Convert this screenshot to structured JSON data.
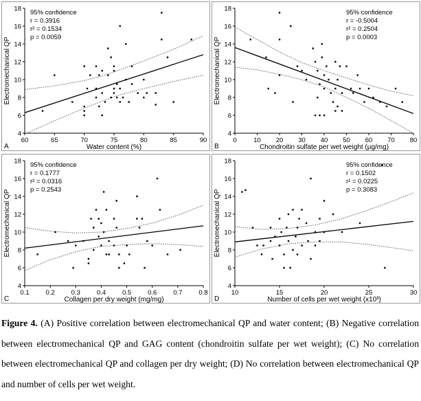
{
  "chart_data": [
    {
      "type": "scatter",
      "panel_label": "A",
      "title": "",
      "xlabel": "Water content (%)",
      "ylabel": "Electromechanical QP",
      "xlim": [
        60,
        90
      ],
      "ylim": [
        4,
        18
      ],
      "xticks": [
        60,
        65,
        70,
        75,
        80,
        85,
        90
      ],
      "yticks": [
        4,
        6,
        8,
        10,
        12,
        14,
        16,
        18
      ],
      "grid": false,
      "stats": [
        "95% confidence",
        "r = 0.3916",
        "r² = 0.1534",
        "p = 0.0059"
      ],
      "stats_position": "top-left",
      "fit_line": [
        [
          60,
          6.3
        ],
        [
          90,
          12.8
        ]
      ],
      "confidence_band": {
        "upper": [
          [
            60,
            8.9
          ],
          [
            65,
            9.3
          ],
          [
            70,
            9.9
          ],
          [
            73,
            10.4
          ],
          [
            76,
            11.1
          ],
          [
            80,
            12.1
          ],
          [
            85,
            13.4
          ],
          [
            90,
            14.9
          ]
        ],
        "lower": [
          [
            60,
            3.9
          ],
          [
            65,
            5.4
          ],
          [
            70,
            6.8
          ],
          [
            73,
            7.6
          ],
          [
            76,
            8.3
          ],
          [
            80,
            9.0
          ],
          [
            85,
            9.8
          ],
          [
            90,
            10.5
          ]
        ]
      },
      "points": [
        [
          63,
          6.5
        ],
        [
          65,
          10.5
        ],
        [
          68,
          7.5
        ],
        [
          70,
          11.5
        ],
        [
          70,
          6
        ],
        [
          70,
          6.5
        ],
        [
          70,
          7
        ],
        [
          70.5,
          9
        ],
        [
          71,
          10.5
        ],
        [
          72,
          11.5
        ],
        [
          72,
          9
        ],
        [
          72,
          8
        ],
        [
          72.5,
          7
        ],
        [
          72.5,
          10.5
        ],
        [
          73,
          11
        ],
        [
          73,
          8.5
        ],
        [
          73,
          6
        ],
        [
          73.5,
          7.5
        ],
        [
          74,
          13.5
        ],
        [
          74,
          10.5
        ],
        [
          74.5,
          8
        ],
        [
          74.5,
          12.5
        ],
        [
          75,
          11
        ],
        [
          75,
          11.5
        ],
        [
          75,
          9
        ],
        [
          75,
          8.5
        ],
        [
          75.5,
          8
        ],
        [
          75.5,
          9.5
        ],
        [
          76,
          16
        ],
        [
          76,
          7.5
        ],
        [
          76,
          9
        ],
        [
          76.5,
          8
        ],
        [
          77,
          14
        ],
        [
          77,
          10
        ],
        [
          77.5,
          7.5
        ],
        [
          78,
          11.5
        ],
        [
          78,
          9.5
        ],
        [
          79,
          8.5
        ],
        [
          80,
          10
        ],
        [
          80,
          8
        ],
        [
          80.5,
          8.5
        ],
        [
          82,
          8.5
        ],
        [
          82,
          7.2
        ],
        [
          83,
          17.5
        ],
        [
          83,
          14.5
        ],
        [
          84,
          12.5
        ],
        [
          85,
          7.5
        ],
        [
          88,
          14.5
        ]
      ]
    },
    {
      "type": "scatter",
      "panel_label": "B",
      "title": "",
      "xlabel": "Chondroitin sulfate per wet weight (µg/mg)",
      "ylabel": "Electromechanical QP",
      "xlim": [
        0,
        80
      ],
      "ylim": [
        4,
        18
      ],
      "xticks": [
        0,
        10,
        20,
        30,
        40,
        50,
        60,
        70,
        80
      ],
      "yticks": [
        4,
        6,
        8,
        10,
        12,
        14,
        16,
        18
      ],
      "grid": false,
      "stats": [
        "95% confidence",
        "r = -0.5004",
        "r² = 0.2504",
        "p = 0.0003"
      ],
      "stats_position": "top-right",
      "fit_line": [
        [
          0,
          13.6
        ],
        [
          80,
          6.2
        ]
      ],
      "confidence_band": {
        "upper": [
          [
            0,
            15.9
          ],
          [
            10,
            14.5
          ],
          [
            20,
            13.1
          ],
          [
            30,
            11.9
          ],
          [
            40,
            11.0
          ],
          [
            50,
            10.2
          ],
          [
            60,
            9.4
          ],
          [
            70,
            8.7
          ],
          [
            80,
            8.2
          ]
        ],
        "lower": [
          [
            0,
            11.4
          ],
          [
            10,
            11.1
          ],
          [
            20,
            10.6
          ],
          [
            30,
            10.0
          ],
          [
            40,
            9.2
          ],
          [
            50,
            8.0
          ],
          [
            60,
            6.8
          ],
          [
            70,
            5.4
          ],
          [
            80,
            4.0
          ]
        ]
      },
      "points": [
        [
          7,
          14.5
        ],
        [
          14,
          12.5
        ],
        [
          15,
          9
        ],
        [
          18,
          8.5
        ],
        [
          20,
          14.5
        ],
        [
          20,
          17.5
        ],
        [
          20,
          10.5
        ],
        [
          25,
          16
        ],
        [
          26,
          7.5
        ],
        [
          28,
          11.5
        ],
        [
          30,
          11
        ],
        [
          32,
          10
        ],
        [
          35,
          13.5
        ],
        [
          36,
          12
        ],
        [
          36,
          6
        ],
        [
          37,
          11
        ],
        [
          37,
          8
        ],
        [
          38,
          9.5
        ],
        [
          38,
          6
        ],
        [
          39,
          14
        ],
        [
          39,
          12.5
        ],
        [
          40,
          10.5
        ],
        [
          40,
          9
        ],
        [
          40,
          6
        ],
        [
          41,
          11.5
        ],
        [
          42,
          10
        ],
        [
          43,
          8.5
        ],
        [
          44,
          7.5
        ],
        [
          45,
          12
        ],
        [
          45,
          9
        ],
        [
          45,
          6.5
        ],
        [
          46,
          10
        ],
        [
          46,
          7
        ],
        [
          47,
          11.5
        ],
        [
          48,
          8.5
        ],
        [
          48,
          6.5
        ],
        [
          50,
          11.5
        ],
        [
          52,
          9
        ],
        [
          53,
          8.5
        ],
        [
          55,
          10.5
        ],
        [
          56,
          9
        ],
        [
          58,
          7.5
        ],
        [
          60,
          9
        ],
        [
          62,
          8
        ],
        [
          65,
          7.5
        ],
        [
          68,
          7
        ],
        [
          72,
          9
        ],
        [
          75,
          7.5
        ]
      ]
    },
    {
      "type": "scatter",
      "panel_label": "C",
      "title": "",
      "xlabel": "Collagen per dry weight (mg/mg)",
      "ylabel": "Electromechanical QP",
      "xlim": [
        0.1,
        0.8
      ],
      "ylim": [
        4,
        18
      ],
      "xticks": [
        0.1,
        0.2,
        0.3,
        0.4,
        0.5,
        0.6,
        0.7,
        0.8
      ],
      "yticks": [
        4,
        6,
        8,
        10,
        12,
        14,
        16,
        18
      ],
      "grid": false,
      "stats": [
        "95% confidence",
        "r = 0.1777",
        "r² = 0.0316",
        "p = 0.2543"
      ],
      "stats_position": "top-left",
      "fit_line": [
        [
          0.1,
          8.2
        ],
        [
          0.8,
          10.7
        ]
      ],
      "confidence_band": {
        "upper": [
          [
            0.1,
            10.5
          ],
          [
            0.2,
            10.1
          ],
          [
            0.3,
            9.9
          ],
          [
            0.4,
            10.0
          ],
          [
            0.5,
            10.4
          ],
          [
            0.6,
            11.0
          ],
          [
            0.7,
            11.9
          ],
          [
            0.8,
            13.0
          ]
        ],
        "lower": [
          [
            0.1,
            5.7
          ],
          [
            0.2,
            6.9
          ],
          [
            0.3,
            7.8
          ],
          [
            0.4,
            8.4
          ],
          [
            0.5,
            8.6
          ],
          [
            0.6,
            8.7
          ],
          [
            0.7,
            8.6
          ],
          [
            0.8,
            8.4
          ]
        ]
      },
      "points": [
        [
          0.15,
          7.5
        ],
        [
          0.22,
          10
        ],
        [
          0.27,
          9
        ],
        [
          0.29,
          6
        ],
        [
          0.3,
          8.5
        ],
        [
          0.33,
          9
        ],
        [
          0.35,
          7
        ],
        [
          0.35,
          6.5
        ],
        [
          0.36,
          11.5
        ],
        [
          0.37,
          10.5
        ],
        [
          0.37,
          8
        ],
        [
          0.38,
          12.5
        ],
        [
          0.39,
          11.5
        ],
        [
          0.39,
          9.5
        ],
        [
          0.4,
          11
        ],
        [
          0.4,
          8.5
        ],
        [
          0.41,
          14.5
        ],
        [
          0.41,
          10
        ],
        [
          0.42,
          12.5
        ],
        [
          0.42,
          7.5
        ],
        [
          0.43,
          9
        ],
        [
          0.43,
          7.5
        ],
        [
          0.45,
          11.5
        ],
        [
          0.45,
          8.5
        ],
        [
          0.46,
          13.5
        ],
        [
          0.46,
          10.5
        ],
        [
          0.47,
          7.5
        ],
        [
          0.47,
          6
        ],
        [
          0.49,
          6.5
        ],
        [
          0.5,
          8.5
        ],
        [
          0.51,
          7.5
        ],
        [
          0.54,
          14
        ],
        [
          0.54,
          11.5
        ],
        [
          0.55,
          10.5
        ],
        [
          0.56,
          11.5
        ],
        [
          0.57,
          6
        ],
        [
          0.58,
          9
        ],
        [
          0.6,
          8.5
        ],
        [
          0.62,
          16
        ],
        [
          0.63,
          12.5
        ],
        [
          0.66,
          7.5
        ],
        [
          0.71,
          8
        ]
      ]
    },
    {
      "type": "scatter",
      "panel_label": "D",
      "title": "",
      "xlabel": "Number of cells per wet weight (x10³)",
      "ylabel": "Electromechanical QP",
      "xlim": [
        10,
        30
      ],
      "ylim": [
        4,
        18
      ],
      "xticks": [
        10,
        15,
        20,
        25,
        30
      ],
      "yticks": [
        4,
        6,
        8,
        10,
        12,
        14,
        16,
        18
      ],
      "grid": false,
      "stats": [
        "95% confidence",
        "r = 0.1502",
        "r² = 0.0225",
        "p = 0.3083"
      ],
      "stats_position": "top-right",
      "fit_line": [
        [
          10,
          8.9
        ],
        [
          30,
          11.2
        ]
      ],
      "confidence_band": {
        "upper": [
          [
            10,
            10.6
          ],
          [
            13,
            10.3
          ],
          [
            16,
            10.4
          ],
          [
            19,
            10.8
          ],
          [
            22,
            11.5
          ],
          [
            25,
            12.5
          ],
          [
            28,
            13.6
          ],
          [
            30,
            14.4
          ]
        ],
        "lower": [
          [
            10,
            7.2
          ],
          [
            13,
            8.1
          ],
          [
            16,
            8.7
          ],
          [
            19,
            8.9
          ],
          [
            22,
            8.9
          ],
          [
            25,
            8.6
          ],
          [
            28,
            8.2
          ],
          [
            30,
            7.9
          ]
        ]
      },
      "points": [
        [
          10.8,
          14.5
        ],
        [
          11.2,
          14.7
        ],
        [
          12,
          10.5
        ],
        [
          12.5,
          8.5
        ],
        [
          13,
          7.5
        ],
        [
          13.2,
          8.5
        ],
        [
          14,
          10.5
        ],
        [
          14,
          9
        ],
        [
          14.2,
          7
        ],
        [
          14.5,
          9.5
        ],
        [
          15,
          11.5
        ],
        [
          15,
          8.5
        ],
        [
          15.2,
          10
        ],
        [
          15.5,
          7.5
        ],
        [
          15.5,
          6
        ],
        [
          15.8,
          10.5
        ],
        [
          16,
          12
        ],
        [
          16,
          9
        ],
        [
          16.2,
          6
        ],
        [
          16.5,
          12.5
        ],
        [
          16.5,
          8
        ],
        [
          16.8,
          9.5
        ],
        [
          17,
          10.5
        ],
        [
          17,
          7.5
        ],
        [
          17.2,
          11.5
        ],
        [
          17.5,
          12.5
        ],
        [
          17.5,
          8.5
        ],
        [
          18,
          11
        ],
        [
          18.2,
          9
        ],
        [
          18.5,
          16
        ],
        [
          18.5,
          7
        ],
        [
          19,
          8.5
        ],
        [
          19,
          10
        ],
        [
          19.5,
          11.5
        ],
        [
          19.5,
          9
        ],
        [
          20,
          13.5
        ],
        [
          20,
          10
        ],
        [
          21,
          12
        ],
        [
          22,
          10
        ],
        [
          24,
          11
        ],
        [
          26.5,
          17.5
        ],
        [
          26.8,
          6
        ]
      ]
    }
  ],
  "caption": {
    "figure_label": "Figure 4.",
    "text": " (A) Positive correlation between electromechanical QP and water content; (B) Negative correlation between electromechanical QP and GAG content (chondroitin sulfate per wet weight); (C) No correlation between electromechanical QP and collagen per dry weight; (D) No correlation between electromechanical QP and number of cells per wet weight."
  },
  "colors": {
    "frame": "#999999",
    "axis": "#000000",
    "points": "#000000",
    "fit_line": "#000000",
    "confidence": "#555555"
  }
}
